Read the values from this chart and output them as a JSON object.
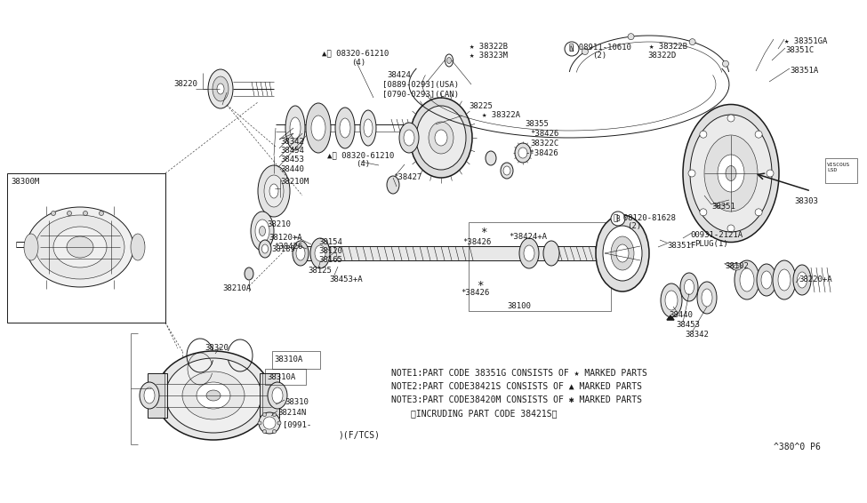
{
  "bg_color": "#ffffff",
  "line_color": "#1a1a1a",
  "fig_width": 9.75,
  "fig_height": 5.66,
  "dpi": 100,
  "note1": "NOTE1:PART CODE 38351G CONSISTS OF ★ MARKED PARTS",
  "note2": "NOTE2:PART CODE38421S CONSISTS OF ▲ MARKED PARTS",
  "note3": "NOTE3:PART CODE38420M CONSISTS OF ✱ MARKED PARTS",
  "note4": "（INCRUDING PART CODE 38421S）",
  "footer_left": ")(F/TCS)",
  "footer_right": "^380^0 P6"
}
